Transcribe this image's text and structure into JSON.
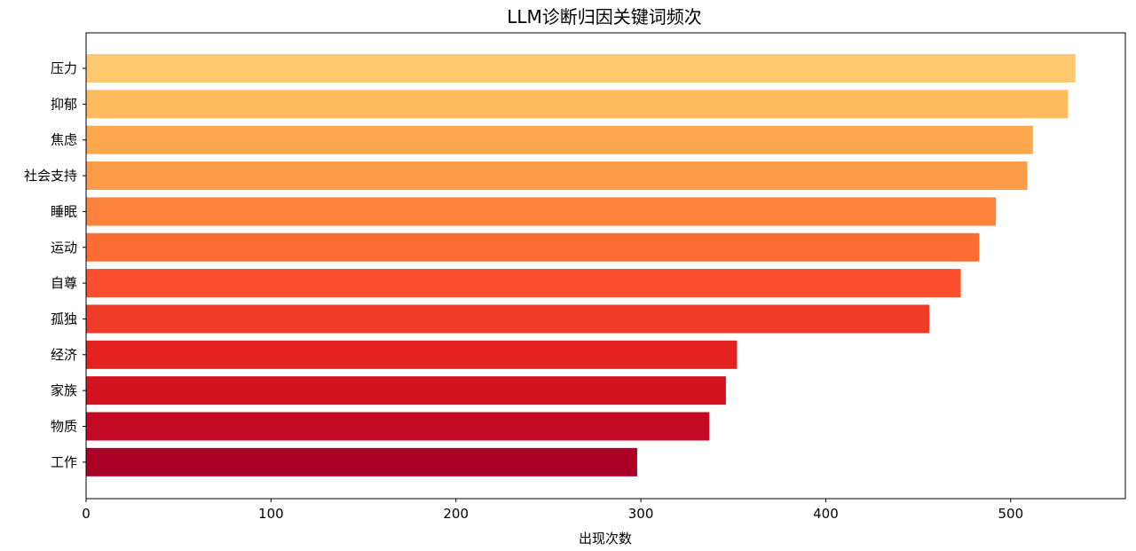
{
  "chart_data": {
    "type": "bar",
    "orientation": "horizontal",
    "title": "LLM诊断归因关键词频次",
    "xlabel": "出现次数",
    "ylabel": "",
    "xlim": [
      0,
      562
    ],
    "xticks": [
      0,
      100,
      200,
      300,
      400,
      500
    ],
    "grid": false,
    "categories": [
      "压力",
      "抑郁",
      "焦虑",
      "社会支持",
      "睡眠",
      "运动",
      "自尊",
      "孤独",
      "经济",
      "家族",
      "物质",
      "工作"
    ],
    "values": [
      535,
      531,
      512,
      509,
      492,
      483,
      473,
      456,
      352,
      346,
      337,
      298
    ],
    "colors": [
      "#fec96c",
      "#febc5e",
      "#fea84e",
      "#fd9b46",
      "#fd833d",
      "#fc6c33",
      "#fa4e2d",
      "#ef3a27",
      "#e3211f",
      "#d41321",
      "#c20a25",
      "#aa0026"
    ]
  }
}
